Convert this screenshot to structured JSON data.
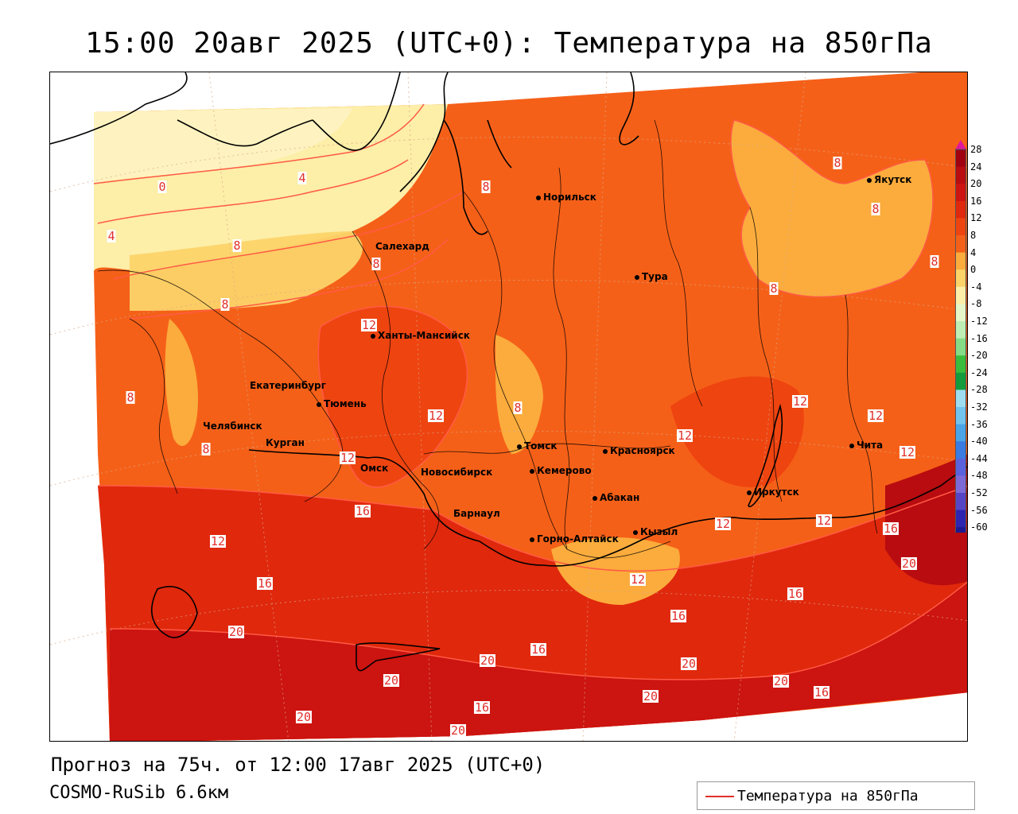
{
  "title": "15:00 20авг 2025 (UTC+0): Температура на 850гПа",
  "footer": {
    "forecast": "Прогноз на 75ч. от 12:00 17авг 2025 (UTC+0)",
    "model": "COSMO-RuSib 6.6км"
  },
  "legend": {
    "label": "Температура на 850гПа",
    "color": "#e0302a"
  },
  "cities": [
    {
      "name": "Норильск"
    },
    {
      "name": "Якутск"
    },
    {
      "name": "Салехард"
    },
    {
      "name": "Тура"
    },
    {
      "name": "Ханты-Мансийск"
    },
    {
      "name": "Екатеринбург"
    },
    {
      "name": "Тюмень"
    },
    {
      "name": "Челябинск"
    },
    {
      "name": "Курган"
    },
    {
      "name": "Омск"
    },
    {
      "name": "Томск"
    },
    {
      "name": "Красноярск"
    },
    {
      "name": "Новосибирск"
    },
    {
      "name": "Кемерово"
    },
    {
      "name": "Абакан"
    },
    {
      "name": "Иркутск"
    },
    {
      "name": "Чита"
    },
    {
      "name": "Барнаул"
    },
    {
      "name": "Горно-Алтайск"
    },
    {
      "name": "Кызыл"
    }
  ],
  "contour_labels": [
    "0",
    "4",
    "4",
    "8",
    "8",
    "8",
    "8",
    "8",
    "8",
    "8",
    "8",
    "8",
    "8",
    "8",
    "12",
    "12",
    "12",
    "12",
    "12",
    "12",
    "12",
    "12",
    "12",
    "12",
    "12",
    "16",
    "16",
    "16",
    "16",
    "16",
    "16",
    "16",
    "16",
    "20",
    "20",
    "20",
    "20",
    "20",
    "20",
    "20",
    "20",
    "20"
  ],
  "colorbar": {
    "ticks": [
      "28",
      "24",
      "20",
      "16",
      "12",
      "8",
      "4",
      "0",
      "-4",
      "-8",
      "-12",
      "-16",
      "-20",
      "-24",
      "-28",
      "-32",
      "-36",
      "-40",
      "-44",
      "-48",
      "-52",
      "-56",
      "-60"
    ],
    "colors": [
      "#a00010",
      "#b80c10",
      "#cc1410",
      "#e0280c",
      "#ee4410",
      "#f56018",
      "#fbac3c",
      "#fcd368",
      "#fdeea8",
      "#e6f6c8",
      "#bfeeb4",
      "#86dc86",
      "#3cbc3c",
      "#149c3c",
      "#9edcf0",
      "#72c4ec",
      "#4aa4e6",
      "#3a7ce2",
      "#5a62dc",
      "#7e6ad6",
      "#5646c6",
      "#2e24b0",
      "#1e1890"
    ],
    "top_color": "#e0189c"
  }
}
